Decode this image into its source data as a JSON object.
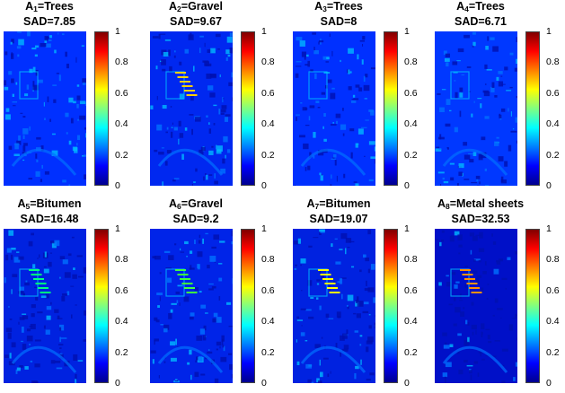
{
  "colorbar_ticks": [
    "1",
    "0.8",
    "0.6",
    "0.4",
    "0.2",
    "0"
  ],
  "panels": [
    {
      "prefix": "A",
      "index": "1",
      "name": "=Trees",
      "sad": "SAD=7.85"
    },
    {
      "prefix": "A",
      "index": "2",
      "name": "=Gravel",
      "sad": "SAD=9.67"
    },
    {
      "prefix": "A",
      "index": "3",
      "name": "=Trees",
      "sad": "SAD=8"
    },
    {
      "prefix": "A",
      "index": "4",
      "name": "=Trees",
      "sad": "SAD=6.71"
    },
    {
      "prefix": "A",
      "index": "5",
      "name": "=Bitumen",
      "sad": "SAD=16.48"
    },
    {
      "prefix": "A",
      "index": "6",
      "name": "=Gravel",
      "sad": "SAD=9.2"
    },
    {
      "prefix": "A",
      "index": "7",
      "name": "=Bitumen",
      "sad": "SAD=19.07"
    },
    {
      "prefix": "A",
      "index": "8",
      "name": "=Metal sheets",
      "sad": "SAD=32.53"
    }
  ],
  "colors": {
    "low": "#00008f",
    "mid": "#00ffff",
    "high": "#800000"
  }
}
